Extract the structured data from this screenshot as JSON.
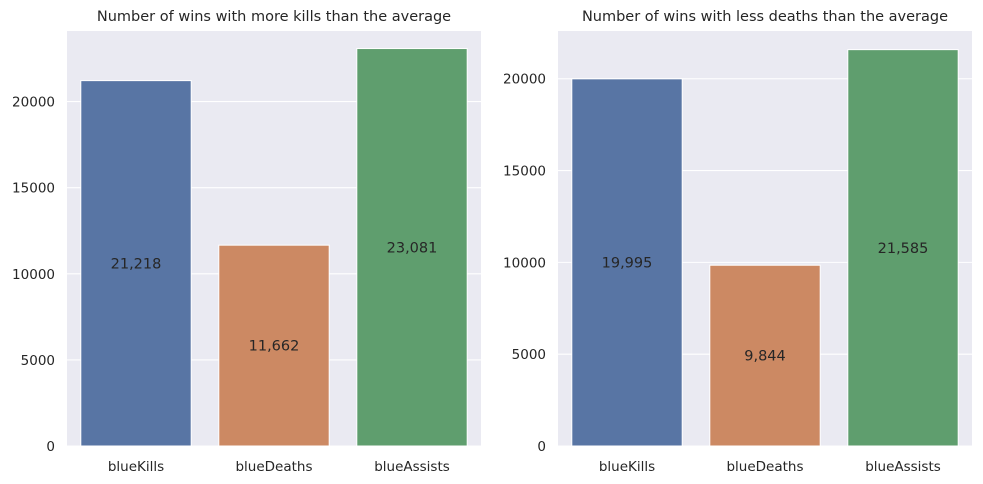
{
  "chart_data": [
    {
      "type": "bar",
      "title": "Number of wins with more kills than the average",
      "categories": [
        "blueKills",
        "blueDeaths",
        "blueAssists"
      ],
      "values": [
        21218,
        11662,
        23081
      ],
      "value_labels": [
        "21,218",
        "11,662",
        "23,081"
      ],
      "colors": [
        "#5875a4",
        "#cc8963",
        "#5f9e6e"
      ],
      "xlabel": "",
      "ylabel": "",
      "ylim": [
        0,
        24100
      ],
      "yticks": [
        0,
        5000,
        10000,
        15000,
        20000
      ],
      "ytick_labels": [
        "0",
        "5000",
        "10000",
        "15000",
        "20000"
      ],
      "grid": true
    },
    {
      "type": "bar",
      "title": "Number of wins with less deaths than the average",
      "categories": [
        "blueKills",
        "blueDeaths",
        "blueAssists"
      ],
      "values": [
        19995,
        9844,
        21585
      ],
      "value_labels": [
        "19,995",
        "9,844",
        "21,585"
      ],
      "colors": [
        "#5875a4",
        "#cc8963",
        "#5f9e6e"
      ],
      "xlabel": "",
      "ylabel": "",
      "ylim": [
        0,
        22600
      ],
      "yticks": [
        0,
        5000,
        10000,
        15000,
        20000
      ],
      "ytick_labels": [
        "0",
        "5000",
        "10000",
        "15000",
        "20000"
      ],
      "grid": true
    }
  ]
}
